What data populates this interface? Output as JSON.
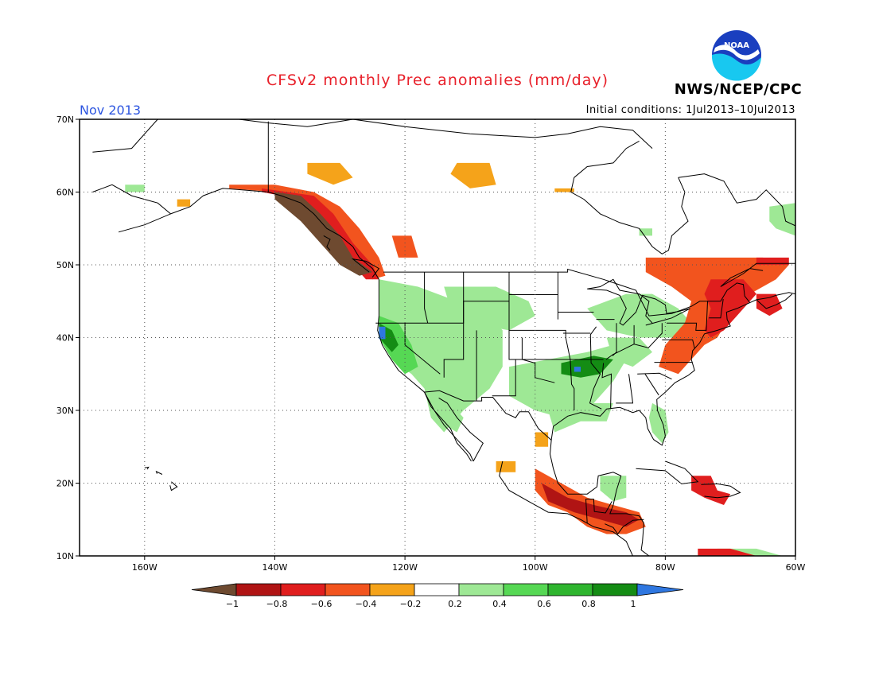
{
  "header": {
    "title": "CFSv2 monthly Prec anomalies (mm/day)",
    "org": "NWS/NCEP/CPC",
    "month": "Nov 2013",
    "initial_conditions": "Initial conditions: 1Jul2013–10Jul2013",
    "logo_text": "NOAA"
  },
  "axes": {
    "lat_labels": [
      "70N",
      "60N",
      "50N",
      "40N",
      "30N",
      "20N",
      "10N"
    ],
    "lon_labels": [
      "160W",
      "140W",
      "120W",
      "100W",
      "80W",
      "60W"
    ]
  },
  "legend": {
    "labels": [
      "−1",
      "−0.8",
      "−0.6",
      "−0.4",
      "−0.2",
      "0.2",
      "0.4",
      "0.6",
      "0.8",
      "1"
    ],
    "colors": [
      "#6e4a30",
      "#b01414",
      "#e01e1e",
      "#f2541e",
      "#f5a31a",
      "#ffffff",
      "#9ee895",
      "#56d854",
      "#2fb52f",
      "#148c14",
      "#2f77e0"
    ]
  },
  "map_data": {
    "lon_range": [
      -170,
      -60
    ],
    "lat_range": [
      10,
      70
    ],
    "anomaly_regions": [
      {
        "name": "alaska-panhandle",
        "value": -1.0,
        "pts": [
          [
            -140,
            60
          ],
          [
            -136,
            59.5
          ],
          [
            -133,
            57
          ],
          [
            -130,
            54
          ],
          [
            -128,
            51
          ],
          [
            -125,
            49
          ],
          [
            -127,
            48.5
          ],
          [
            -130,
            50
          ],
          [
            -133,
            53
          ],
          [
            -136,
            56
          ],
          [
            -140,
            59
          ]
        ]
      },
      {
        "name": "bc-coast-wet-deficit",
        "value": -0.6,
        "pts": [
          [
            -142,
            60.5
          ],
          [
            -134,
            59.5
          ],
          [
            -131,
            57
          ],
          [
            -128,
            53
          ],
          [
            -125,
            50
          ],
          [
            -124,
            48
          ],
          [
            -126,
            48
          ],
          [
            -129,
            51
          ],
          [
            -132,
            55
          ],
          [
            -136,
            59
          ],
          [
            -142,
            60
          ]
        ]
      },
      {
        "name": "bc-coast-outer",
        "value": -0.4,
        "pts": [
          [
            -147,
            61
          ],
          [
            -140,
            61
          ],
          [
            -134,
            60
          ],
          [
            -130,
            58
          ],
          [
            -127,
            55
          ],
          [
            -124,
            51
          ],
          [
            -123,
            48.5
          ],
          [
            -125,
            48
          ],
          [
            -128,
            51
          ],
          [
            -131,
            55
          ],
          [
            -135,
            58.5
          ],
          [
            -140,
            60
          ],
          [
            -147,
            60.5
          ]
        ]
      },
      {
        "name": "yukon-patch",
        "value": -0.3,
        "pts": [
          [
            -135,
            64
          ],
          [
            -130,
            64
          ],
          [
            -128,
            62
          ],
          [
            -131,
            61
          ],
          [
            -135,
            62.5
          ]
        ]
      },
      {
        "name": "nwt-patch",
        "value": -0.3,
        "pts": [
          [
            -112,
            64
          ],
          [
            -107,
            64
          ],
          [
            -106,
            61
          ],
          [
            -110,
            60.5
          ],
          [
            -113,
            62.5
          ]
        ]
      },
      {
        "name": "hudson-sw-patch",
        "value": -0.3,
        "pts": [
          [
            -97,
            60.5
          ],
          [
            -94,
            60.5
          ],
          [
            -94,
            60
          ],
          [
            -97,
            60
          ]
        ]
      },
      {
        "name": "alaska-sw-patch",
        "value": -0.3,
        "pts": [
          [
            -155,
            59
          ],
          [
            -153,
            59
          ],
          [
            -153,
            58
          ],
          [
            -155,
            58
          ]
        ]
      },
      {
        "name": "alberta-patch",
        "value": -0.4,
        "pts": [
          [
            -122,
            54
          ],
          [
            -119,
            54
          ],
          [
            -118,
            51
          ],
          [
            -121,
            51
          ]
        ]
      },
      {
        "name": "quebec-northeast",
        "value": -0.4,
        "pts": [
          [
            -83,
            51
          ],
          [
            -73,
            51
          ],
          [
            -65,
            51
          ],
          [
            -61,
            50
          ],
          [
            -63,
            48
          ],
          [
            -67,
            46
          ],
          [
            -70,
            43
          ],
          [
            -72,
            40
          ],
          [
            -74,
            39
          ],
          [
            -76,
            37
          ],
          [
            -78,
            35
          ],
          [
            -81,
            36
          ],
          [
            -80,
            39
          ],
          [
            -77,
            42
          ],
          [
            -76,
            45
          ],
          [
            -79,
            47
          ],
          [
            -83,
            49
          ]
        ]
      },
      {
        "name": "new-england-strong",
        "value": -0.6,
        "pts": [
          [
            -73,
            48
          ],
          [
            -68,
            48
          ],
          [
            -66,
            46
          ],
          [
            -69,
            43
          ],
          [
            -71,
            41
          ],
          [
            -73,
            40
          ],
          [
            -74,
            41
          ],
          [
            -73,
            44
          ],
          [
            -74,
            46
          ]
        ]
      },
      {
        "name": "nova-scotia-patch",
        "value": -0.6,
        "pts": [
          [
            -66,
            46
          ],
          [
            -63,
            46
          ],
          [
            -62,
            44
          ],
          [
            -64,
            43
          ],
          [
            -66,
            44
          ]
        ]
      },
      {
        "name": "labrador-patch",
        "value": -0.6,
        "pts": [
          [
            -66,
            51
          ],
          [
            -61,
            51
          ],
          [
            -61,
            50
          ],
          [
            -66,
            50
          ]
        ]
      },
      {
        "name": "mexico-central-patch",
        "value": -0.3,
        "pts": [
          [
            -106,
            23
          ],
          [
            -103,
            23
          ],
          [
            -103,
            21.5
          ],
          [
            -106,
            21.5
          ]
        ]
      },
      {
        "name": "gulf-west-patch",
        "value": -0.3,
        "pts": [
          [
            -100,
            27
          ],
          [
            -98,
            27
          ],
          [
            -98,
            25
          ],
          [
            -100,
            25
          ]
        ]
      },
      {
        "name": "central-america-band",
        "value": -0.4,
        "pts": [
          [
            -100,
            22
          ],
          [
            -96,
            20
          ],
          [
            -92,
            18
          ],
          [
            -88,
            17
          ],
          [
            -84,
            16
          ],
          [
            -83,
            14
          ],
          [
            -86,
            13
          ],
          [
            -89,
            13
          ],
          [
            -92,
            14
          ],
          [
            -95,
            16
          ],
          [
            -98,
            17
          ],
          [
            -100,
            19
          ]
        ]
      },
      {
        "name": "central-america-strong",
        "value": -0.7,
        "pts": [
          [
            -99,
            20
          ],
          [
            -95,
            18
          ],
          [
            -91,
            17
          ],
          [
            -86,
            16
          ],
          [
            -84,
            15
          ],
          [
            -86,
            14
          ],
          [
            -90,
            15
          ],
          [
            -94,
            16
          ],
          [
            -98,
            17.5
          ]
        ]
      },
      {
        "name": "caribbean-patch",
        "value": -0.6,
        "pts": [
          [
            -76,
            21
          ],
          [
            -73,
            21
          ],
          [
            -72,
            19
          ],
          [
            -70,
            18.5
          ],
          [
            -71,
            17
          ],
          [
            -74,
            18
          ],
          [
            -76,
            19
          ]
        ]
      },
      {
        "name": "venezuela-coast",
        "value": -0.6,
        "pts": [
          [
            -75,
            11
          ],
          [
            -70,
            11
          ],
          [
            -66,
            10
          ],
          [
            -75,
            10
          ]
        ]
      },
      {
        "name": "west-us-wet",
        "value": 0.3,
        "pts": [
          [
            -124,
            48
          ],
          [
            -118,
            47
          ],
          [
            -112,
            45
          ],
          [
            -108,
            44
          ],
          [
            -105,
            41
          ],
          [
            -105,
            36
          ],
          [
            -107,
            33
          ],
          [
            -111,
            30
          ],
          [
            -114,
            27
          ],
          [
            -116,
            29
          ],
          [
            -117,
            33
          ],
          [
            -119,
            35
          ],
          [
            -122,
            37
          ],
          [
            -124,
            40
          ]
        ]
      },
      {
        "name": "california-wet",
        "value": 0.6,
        "pts": [
          [
            -124,
            43
          ],
          [
            -121,
            42
          ],
          [
            -119,
            39
          ],
          [
            -118,
            36
          ],
          [
            -120,
            35
          ],
          [
            -122,
            37
          ],
          [
            -124,
            40
          ]
        ]
      },
      {
        "name": "california-core",
        "value": 0.8,
        "pts": [
          [
            -124,
            42
          ],
          [
            -122,
            41
          ],
          [
            -121,
            39
          ],
          [
            -122,
            38
          ],
          [
            -124,
            40
          ]
        ]
      },
      {
        "name": "norcal-peak",
        "value": 1.0,
        "pts": [
          [
            -124,
            41.5
          ],
          [
            -123,
            41.5
          ],
          [
            -123,
            39.8
          ],
          [
            -124,
            39.8
          ]
        ]
      },
      {
        "name": "baja-wet",
        "value": 0.4,
        "pts": [
          [
            -116,
            32
          ],
          [
            -113,
            31
          ],
          [
            -111,
            29
          ],
          [
            -112,
            27
          ],
          [
            -114,
            28
          ],
          [
            -115,
            30
          ]
        ]
      },
      {
        "name": "rockies-wet",
        "value": 0.3,
        "pts": [
          [
            -114,
            47
          ],
          [
            -106,
            47
          ],
          [
            -101,
            45
          ],
          [
            -100,
            43
          ],
          [
            -104,
            41
          ],
          [
            -110,
            42
          ],
          [
            -113,
            44
          ]
        ]
      },
      {
        "name": "south-central-wet",
        "value": 0.4,
        "pts": [
          [
            -104,
            36
          ],
          [
            -98,
            37
          ],
          [
            -92,
            38
          ],
          [
            -88,
            39
          ],
          [
            -86,
            37
          ],
          [
            -88,
            34
          ],
          [
            -91,
            31
          ],
          [
            -96,
            29
          ],
          [
            -100,
            30
          ],
          [
            -104,
            32
          ]
        ]
      },
      {
        "name": "arkansas-core",
        "value": 0.7,
        "pts": [
          [
            -96,
            36.5
          ],
          [
            -91,
            37.5
          ],
          [
            -88,
            37
          ],
          [
            -90,
            35
          ],
          [
            -93,
            34.5
          ],
          [
            -96,
            35
          ]
        ]
      },
      {
        "name": "arkansas-peak",
        "value": 1.0,
        "pts": [
          [
            -94,
            36
          ],
          [
            -93,
            36
          ],
          [
            -93,
            35.3
          ],
          [
            -94,
            35.3
          ]
        ]
      },
      {
        "name": "great-lakes-wet",
        "value": 0.3,
        "pts": [
          [
            -92,
            44
          ],
          [
            -86,
            46
          ],
          [
            -82,
            46
          ],
          [
            -78,
            44
          ],
          [
            -76,
            42
          ],
          [
            -79,
            40
          ],
          [
            -84,
            40
          ],
          [
            -89,
            41
          ]
        ]
      },
      {
        "name": "ohio-valley-wet",
        "value": 0.3,
        "pts": [
          [
            -89,
            40
          ],
          [
            -84,
            40
          ],
          [
            -82,
            38
          ],
          [
            -85,
            36
          ],
          [
            -88,
            37
          ]
        ]
      },
      {
        "name": "florida-wet",
        "value": 0.3,
        "pts": [
          [
            -82,
            31
          ],
          [
            -80,
            30
          ],
          [
            -79.5,
            27
          ],
          [
            -80.5,
            25.5
          ],
          [
            -82,
            27
          ],
          [
            -82.5,
            29
          ]
        ]
      },
      {
        "name": "gulf-coast-wet",
        "value": 0.3,
        "pts": [
          [
            -98,
            30
          ],
          [
            -92,
            31
          ],
          [
            -88,
            31
          ],
          [
            -89,
            28.5
          ],
          [
            -93,
            28.5
          ],
          [
            -97,
            27
          ]
        ]
      },
      {
        "name": "yucatan-wet",
        "value": 0.3,
        "pts": [
          [
            -90,
            21
          ],
          [
            -86,
            21
          ],
          [
            -86,
            18
          ],
          [
            -88,
            17.5
          ],
          [
            -90,
            19
          ]
        ]
      },
      {
        "name": "alaska-west-wet",
        "value": 0.3,
        "pts": [
          [
            -163,
            61
          ],
          [
            -160,
            61
          ],
          [
            -160,
            60
          ],
          [
            -163,
            60
          ]
        ]
      },
      {
        "name": "hudson-wet",
        "value": 0.3,
        "pts": [
          [
            -84,
            55
          ],
          [
            -82,
            55
          ],
          [
            -82,
            54
          ],
          [
            -84,
            54
          ]
        ]
      },
      {
        "name": "labrador-wet",
        "value": 0.3,
        "pts": [
          [
            -64,
            58
          ],
          [
            -60,
            58.5
          ],
          [
            -60,
            54
          ],
          [
            -63,
            55
          ],
          [
            -64,
            56
          ]
        ]
      },
      {
        "name": "caribbean-south-wet",
        "value": 0.3,
        "pts": [
          [
            -72,
            11
          ],
          [
            -66,
            11
          ],
          [
            -62,
            10
          ],
          [
            -72,
            10
          ]
        ]
      }
    ]
  }
}
